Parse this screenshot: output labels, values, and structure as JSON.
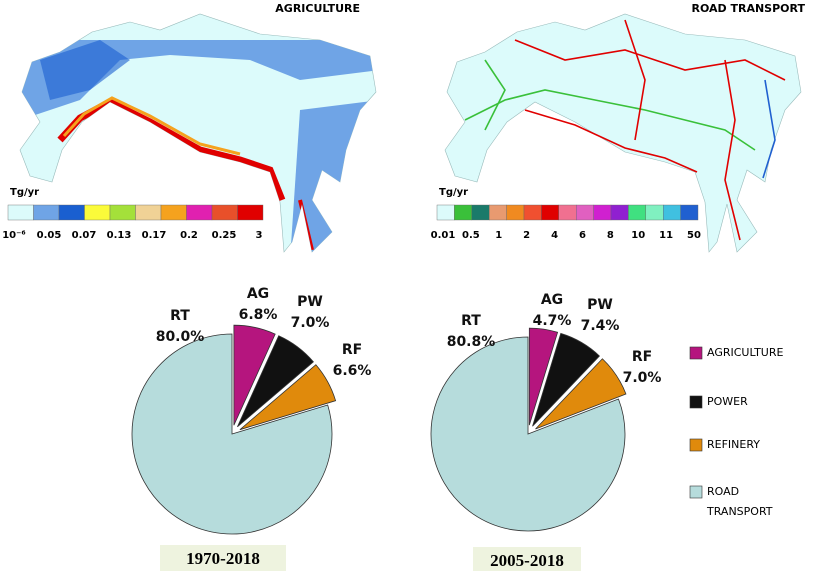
{
  "maps": [
    {
      "title": "AGRICULTURE",
      "unit": "Tg/yr",
      "colors": [
        "#dcfbfb",
        "#6fa4e6",
        "#1a5fd0",
        "#fbfb3a",
        "#a4e03a",
        "#f0d296",
        "#f5a21e",
        "#e020b0",
        "#e8502a",
        "#e00000"
      ],
      "labels": [
        "10⁻⁶",
        "0.05",
        "0.07",
        "0.13",
        "0.17",
        "0.2",
        "0.25",
        "3"
      ]
    },
    {
      "title": "ROAD TRANSPORT",
      "unit": "Tg/yr",
      "colors": [
        "#dcfbfb",
        "#3ac03a",
        "#1a7a6a",
        "#e89a70",
        "#f08a20",
        "#f05030",
        "#e00000",
        "#f07090",
        "#e060c0",
        "#d020d0",
        "#9020d0",
        "#40e080",
        "#80f0c0",
        "#40c0e0",
        "#2060d0"
      ],
      "labels": [
        "0.01",
        "0.5",
        "1",
        "2",
        "4",
        "6",
        "8",
        "10",
        "11",
        "50"
      ]
    }
  ],
  "legend": [
    {
      "label": "AGRICULTURE",
      "color": "#b5157e"
    },
    {
      "label": "POWER",
      "color": "#111111"
    },
    {
      "label": "REFINERY",
      "color": "#e08a0c"
    },
    {
      "label": "ROAD TRANSPORT",
      "color": "#b6dcdc"
    }
  ],
  "chart_data": [
    {
      "type": "pie",
      "title": "1970-2018",
      "categories": [
        "AG",
        "PW",
        "RF",
        "RT"
      ],
      "values": [
        6.8,
        7.0,
        6.6,
        80.0
      ],
      "value_labels": [
        "6.8%",
        "7.0%",
        "6.6%",
        "80.0%"
      ],
      "colors": [
        "#b5157e",
        "#111111",
        "#e08a0c",
        "#b6dcdc"
      ]
    },
    {
      "type": "pie",
      "title": "2005-2018",
      "categories": [
        "AG",
        "PW",
        "RF",
        "RT"
      ],
      "values": [
        4.7,
        7.4,
        7.0,
        80.8
      ],
      "value_labels": [
        "4.7%",
        "7.4%",
        "7.0%",
        "80.8%"
      ],
      "colors": [
        "#b5157e",
        "#111111",
        "#e08a0c",
        "#b6dcdc"
      ]
    }
  ]
}
